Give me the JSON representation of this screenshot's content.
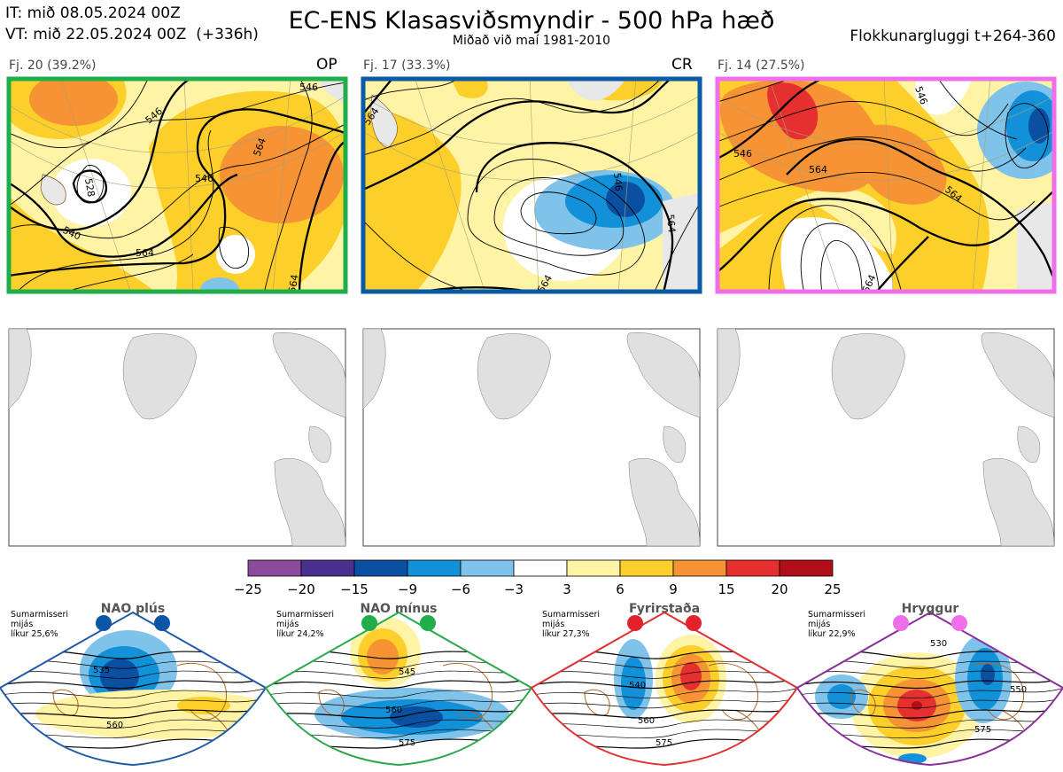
{
  "header": {
    "it_line": "IT: mið 08.05.2024 00Z",
    "vt_line": "VT: mið 22.05.2024 00Z  (+336h)",
    "title": "EC-ENS Klasasviðsmyndir - 500 hPa hæð",
    "subtitle": "Miðað við maí 1981-2010",
    "window": "Flokkunargluggi t+264-360"
  },
  "clusters": [
    {
      "label": "Fj. 20 (39.2%)",
      "code": "OP",
      "frame_color": "#1fae4b",
      "contours": [
        "546",
        "546",
        "564",
        "546",
        "564",
        "528",
        "540",
        "564"
      ]
    },
    {
      "label": "Fj. 17 (33.3%)",
      "code": "CR",
      "frame_color": "#0b5aa6",
      "contours": [
        "564",
        "546",
        "564",
        "564"
      ]
    },
    {
      "label": "Fj. 14 (27.5%)",
      "code": "",
      "frame_color": "#ee6fe9",
      "contours": [
        "546",
        "546",
        "564",
        "564",
        "564"
      ]
    }
  ],
  "legend": {
    "colors": [
      "#8b4a9c",
      "#4a2f8f",
      "#0a4fa0",
      "#1290d8",
      "#7fc3ea",
      "#ffffff",
      "#fff3a6",
      "#fccf2a",
      "#f59335",
      "#e63030",
      "#b00f1a"
    ],
    "ticks": [
      "−25",
      "−20",
      "−15",
      "−9",
      "−6",
      "−3",
      "3",
      "6",
      "9",
      "15",
      "20",
      "25"
    ]
  },
  "regimes": [
    {
      "name": "NAO plús",
      "info": "Sumarmisseri\nmijás\nlíkur 25,6%",
      "dot_color": "#0b56a6",
      "frame_color": "#1e5aa8",
      "contours": [
        "535",
        "560"
      ]
    },
    {
      "name": "NAO mínus",
      "info": "Sumarmisseri\nmijás\nlíkur 24,2%",
      "dot_color": "#1fae4b",
      "frame_color": "#2aa84a",
      "contours": [
        "545",
        "560",
        "575"
      ]
    },
    {
      "name": "Fyrirstaða",
      "info": "Sumarmisseri\nmijás\nlíkur 27,3%",
      "dot_color": "#e3232b",
      "frame_color": "#e03030",
      "contours": [
        "540",
        "560",
        "575"
      ]
    },
    {
      "name": "Hryggur",
      "info": "Sumarmisseri\nmijás\nlíkur 22,9%",
      "dot_color": "#ee6fe9",
      "frame_color": "#8a2f9a",
      "contours": [
        "530",
        "550",
        "575"
      ]
    }
  ]
}
